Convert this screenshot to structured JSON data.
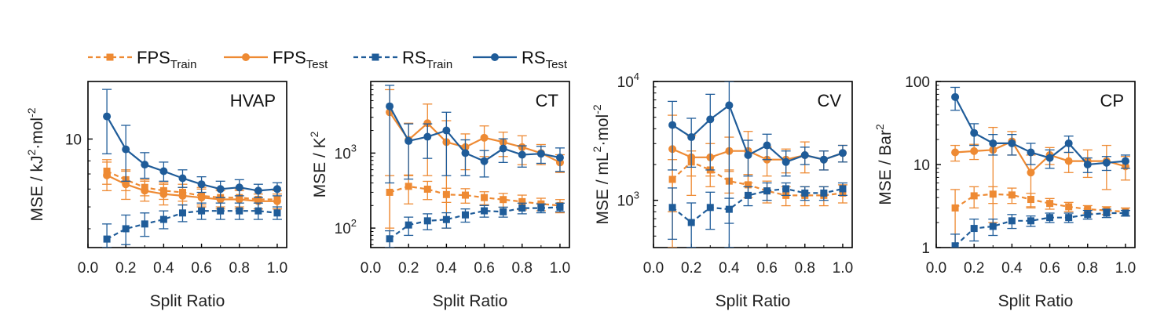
{
  "legend": [
    {
      "base": "FPS",
      "sub": "Train",
      "series_key": "FPS_Train"
    },
    {
      "base": "FPS",
      "sub": "Test",
      "series_key": "FPS_Test"
    },
    {
      "base": "RS",
      "sub": "Train",
      "series_key": "RS_Train"
    },
    {
      "base": "RS",
      "sub": "Test",
      "series_key": "RS_Test"
    }
  ],
  "colors": {
    "FPS": "#ee8a33",
    "RS": "#1f5c99"
  },
  "chart_data": [
    {
      "type": "line",
      "panel_label": "HVAP",
      "xlabel": "Split Ratio",
      "ylabel_parts": [
        "MSE / kJ",
        "2",
        "·mol",
        "-2"
      ],
      "yscale": "log",
      "xlim": [
        0.0,
        1.05
      ],
      "ylim": [
        3.3,
        18
      ],
      "x": [
        0.1,
        0.2,
        0.3,
        0.4,
        0.5,
        0.6,
        0.7,
        0.8,
        0.9,
        1.0
      ],
      "x_ticks": [
        "0.0",
        "0.2",
        "0.4",
        "0.6",
        "0.8",
        "1.0"
      ],
      "y_ticks": [
        {
          "value": 10,
          "label": "10"
        }
      ],
      "series": [
        {
          "key": "FPS_Train",
          "values": [
            7.2,
            6.6,
            6.1,
            5.9,
            5.8,
            5.6,
            5.5,
            5.5,
            5.4,
            5.4
          ],
          "err": [
            0.9,
            0.7,
            0.5,
            0.5,
            0.5,
            0.5,
            0.5,
            0.5,
            0.5,
            0.5
          ]
        },
        {
          "key": "FPS_Test",
          "values": [
            6.9,
            6.3,
            5.9,
            5.7,
            5.6,
            5.5,
            5.4,
            5.4,
            5.3,
            5.3
          ],
          "err": [
            1.0,
            0.9,
            0.6,
            0.6,
            0.5,
            0.5,
            0.5,
            0.5,
            0.4,
            0.4
          ]
        },
        {
          "key": "RS_Train",
          "values": [
            3.6,
            4.0,
            4.2,
            4.4,
            4.7,
            4.8,
            4.8,
            4.8,
            4.8,
            4.7
          ],
          "err": [
            0.6,
            0.6,
            0.5,
            0.4,
            0.4,
            0.4,
            0.4,
            0.4,
            0.4,
            0.3
          ]
        },
        {
          "key": "RS_Test",
          "values": [
            12.6,
            9.0,
            7.7,
            7.2,
            6.7,
            6.3,
            6.0,
            6.1,
            5.9,
            6.0
          ],
          "err": [
            4.0,
            2.5,
            1.0,
            0.7,
            0.6,
            0.5,
            0.5,
            0.5,
            0.4,
            0.4
          ]
        }
      ]
    },
    {
      "type": "line",
      "panel_label": "CT",
      "xlabel": "Split Ratio",
      "ylabel_parts": [
        "MSE / K",
        "2",
        "",
        ""
      ],
      "yscale": "log",
      "xlim": [
        0.0,
        1.05
      ],
      "ylim": [
        55,
        9000
      ],
      "x": [
        0.1,
        0.2,
        0.3,
        0.4,
        0.5,
        0.6,
        0.7,
        0.8,
        0.9,
        1.0
      ],
      "x_ticks": [
        "0.0",
        "0.2",
        "0.4",
        "0.6",
        "0.8",
        "1.0"
      ],
      "y_ticks": [
        {
          "value": 100,
          "label": "10",
          "exp": "2"
        },
        {
          "value": 1000,
          "label": "10",
          "exp": "3"
        }
      ],
      "series": [
        {
          "key": "FPS_Train",
          "values": [
            300,
            360,
            330,
            280,
            275,
            255,
            240,
            225,
            210,
            200
          ],
          "err": [
            200,
            150,
            90,
            60,
            60,
            50,
            50,
            50,
            40,
            40
          ]
        },
        {
          "key": "FPS_Test",
          "values": [
            3500,
            1500,
            2500,
            1400,
            1200,
            1600,
            1400,
            1200,
            1000,
            750
          ],
          "err": [
            3500,
            1000,
            2000,
            1300,
            600,
            700,
            500,
            500,
            300,
            200
          ]
        },
        {
          "key": "RS_Train",
          "values": [
            72,
            110,
            125,
            130,
            150,
            170,
            165,
            185,
            185,
            190
          ],
          "err": [
            20,
            30,
            30,
            30,
            30,
            30,
            25,
            30,
            25,
            25
          ]
        },
        {
          "key": "RS_Test",
          "values": [
            4200,
            1450,
            1650,
            2000,
            1000,
            780,
            1150,
            950,
            980,
            870
          ],
          "err": [
            3800,
            1000,
            800,
            1500,
            500,
            300,
            400,
            300,
            250,
            300
          ]
        }
      ]
    },
    {
      "type": "line",
      "panel_label": "CV",
      "xlabel": "Split Ratio",
      "ylabel_parts": [
        "MSE / mL",
        "2",
        "·mol",
        "-2"
      ],
      "yscale": "log",
      "xlim": [
        0.0,
        1.05
      ],
      "ylim": [
        400,
        10000
      ],
      "x": [
        0.1,
        0.2,
        0.3,
        0.4,
        0.5,
        0.6,
        0.7,
        0.8,
        0.9,
        1.0
      ],
      "x_ticks": [
        "0.0",
        "0.2",
        "0.4",
        "0.6",
        "0.8",
        "1.0"
      ],
      "y_ticks": [
        {
          "value": 1000,
          "label": "10",
          "exp": "3"
        },
        {
          "value": 10000,
          "label": "10",
          "exp": "4"
        }
      ],
      "series": [
        {
          "key": "FPS_Train",
          "values": [
            1500,
            2100,
            1800,
            1450,
            1350,
            1200,
            1100,
            1100,
            1100,
            1150
          ],
          "err": [
            700,
            500,
            500,
            300,
            300,
            250,
            200,
            200,
            200,
            200
          ]
        },
        {
          "key": "FPS_Test",
          "values": [
            2700,
            2300,
            2300,
            2600,
            2600,
            2200,
            2200,
            2400,
            2200,
            2500
          ],
          "err": [
            2500,
            1200,
            700,
            800,
            1200,
            600,
            500,
            700,
            400,
            400
          ]
        },
        {
          "key": "RS_Train",
          "values": [
            870,
            650,
            870,
            840,
            1100,
            1200,
            1250,
            1150,
            1150,
            1250
          ],
          "err": [
            400,
            300,
            300,
            200,
            200,
            200,
            150,
            150,
            150,
            150
          ]
        },
        {
          "key": "RS_Test",
          "values": [
            4300,
            3400,
            4800,
            6300,
            2400,
            2900,
            2100,
            2400,
            2200,
            2500
          ],
          "err": [
            2500,
            1500,
            3000,
            7000,
            800,
            700,
            500,
            400,
            400,
            400
          ]
        }
      ]
    },
    {
      "type": "line",
      "panel_label": "CP",
      "xlabel": "Split Ratio",
      "ylabel_parts": [
        "MSE / Bar",
        "2",
        "",
        ""
      ],
      "yscale": "log",
      "xlim": [
        0.0,
        1.05
      ],
      "ylim": [
        1,
        100
      ],
      "x": [
        0.1,
        0.2,
        0.3,
        0.4,
        0.5,
        0.6,
        0.7,
        0.8,
        0.9,
        1.0
      ],
      "x_ticks": [
        "0.0",
        "0.2",
        "0.4",
        "0.6",
        "0.8",
        "1.0"
      ],
      "y_ticks": [
        {
          "value": 1,
          "label": "1"
        },
        {
          "value": 10,
          "label": "10"
        },
        {
          "value": 100,
          "label": "100"
        }
      ],
      "series": [
        {
          "key": "FPS_Train",
          "values": [
            3.0,
            4.2,
            4.4,
            4.3,
            3.8,
            3.4,
            3.1,
            2.9,
            2.8,
            2.7
          ],
          "err": [
            2.0,
            1.2,
            1.0,
            0.9,
            0.7,
            0.5,
            0.4,
            0.3,
            0.3,
            0.3
          ]
        },
        {
          "key": "FPS_Test",
          "values": [
            14,
            14.5,
            15,
            19,
            8.0,
            13,
            11,
            11,
            11,
            9.5
          ],
          "err": [
            3,
            3,
            13,
            6,
            5,
            3,
            3,
            4,
            6,
            3
          ]
        },
        {
          "key": "RS_Train",
          "values": [
            1.05,
            1.7,
            1.8,
            2.1,
            2.1,
            2.3,
            2.3,
            2.5,
            2.6,
            2.6
          ],
          "err": [
            0.4,
            0.5,
            0.4,
            0.4,
            0.3,
            0.3,
            0.3,
            0.3,
            0.3,
            0.2
          ]
        },
        {
          "key": "RS_Test",
          "values": [
            65,
            24,
            18,
            18,
            14,
            12,
            18,
            10,
            10.5,
            11
          ],
          "err": [
            20,
            7,
            5,
            5,
            4,
            3,
            4,
            2,
            2,
            2
          ]
        }
      ]
    }
  ]
}
